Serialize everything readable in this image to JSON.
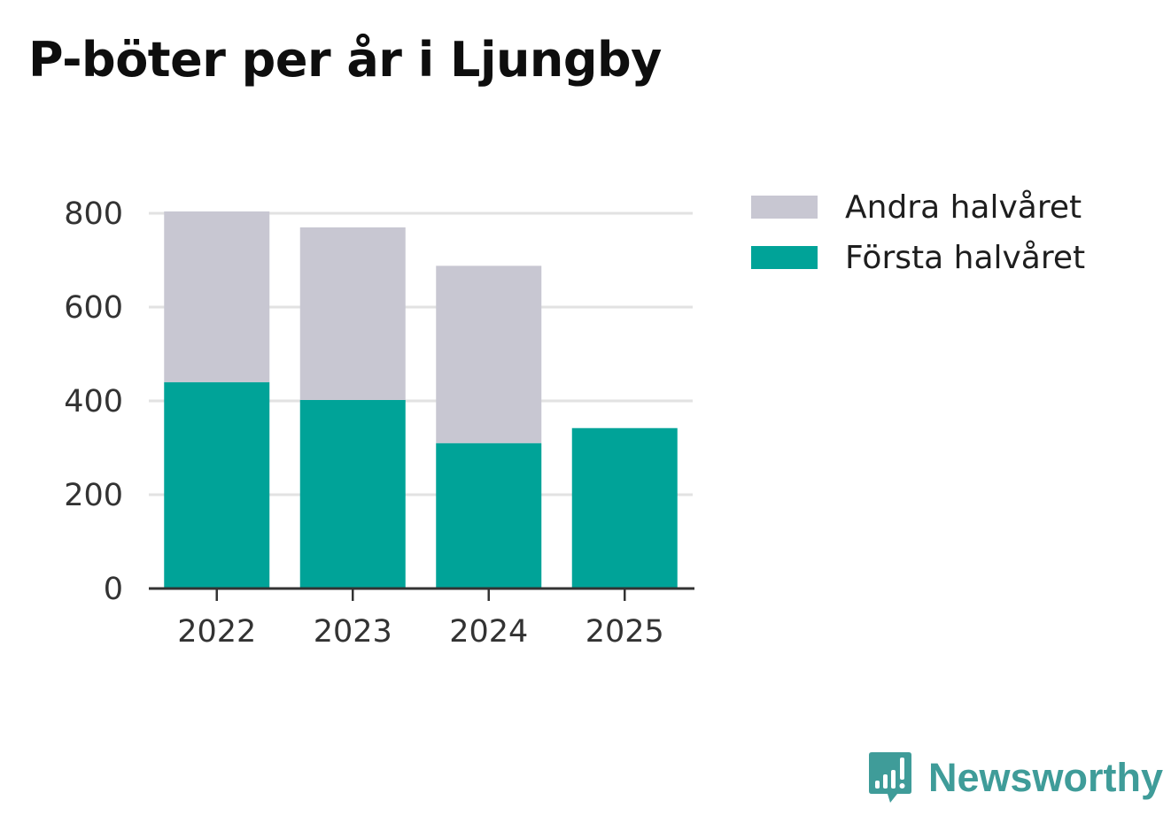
{
  "colors": {
    "first_half": "#00a398",
    "second_half": "#c8c7d2",
    "grid": "#e2e2e2",
    "axis": "#333333",
    "brand": "#3f9c99"
  },
  "chart_data": {
    "type": "bar",
    "stacked": true,
    "title": "P-böter per år i Ljungby",
    "xlabel": "",
    "ylabel": "",
    "categories": [
      "2022",
      "2023",
      "2024",
      "2025"
    ],
    "ylim": [
      0,
      800
    ],
    "yticks": [
      0,
      200,
      400,
      600,
      800
    ],
    "grid": true,
    "legend_position": "top-right",
    "series": [
      {
        "name": "Första halvåret",
        "color": "#00a398",
        "values": [
          440,
          402,
          310,
          342
        ]
      },
      {
        "name": "Andra halvåret",
        "color": "#c8c7d2",
        "values": [
          364,
          368,
          378,
          0
        ]
      }
    ]
  },
  "legend": {
    "items": [
      {
        "label": "Andra halvåret",
        "color": "#c8c7d2"
      },
      {
        "label": "Första halvåret",
        "color": "#00a398"
      }
    ]
  },
  "brand": {
    "label": "Newsworthy",
    "icon": "newsworthy-logo-icon"
  }
}
